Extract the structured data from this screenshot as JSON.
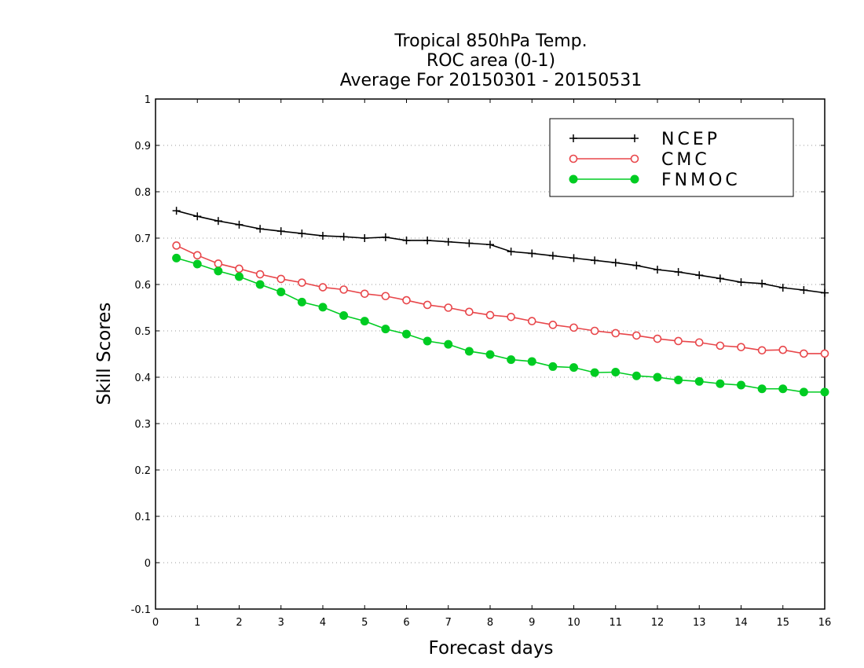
{
  "chart_data": {
    "type": "line",
    "title": [
      "Tropical 850hPa Temp.",
      "ROC area (0-1)",
      "Average For 20150301 - 20150531"
    ],
    "xlabel": "Forecast days",
    "ylabel": "Skill Scores",
    "xlim": [
      0,
      16
    ],
    "ylim": [
      -0.1,
      1
    ],
    "xticks": [
      "0",
      "1",
      "2",
      "3",
      "4",
      "5",
      "6",
      "7",
      "8",
      "9",
      "10",
      "11",
      "12",
      "13",
      "14",
      "15",
      "16"
    ],
    "yticks": [
      "-0.1",
      "0",
      "0.1",
      "0.2",
      "0.3",
      "0.4",
      "0.5",
      "0.6",
      "0.7",
      "0.8",
      "0.9",
      "1"
    ],
    "grid": "horizontal-dotted",
    "legend_position": "top-right",
    "x": [
      0.5,
      1,
      1.5,
      2,
      2.5,
      3,
      3.5,
      4,
      4.5,
      5,
      5.5,
      6,
      6.5,
      7,
      7.5,
      8,
      8.5,
      9,
      9.5,
      10,
      10.5,
      11,
      11.5,
      12,
      12.5,
      13,
      13.5,
      14,
      14.5,
      15,
      15.5,
      16
    ],
    "series": [
      {
        "name": "NCEP",
        "color": "#000000",
        "marker": "plus",
        "values": [
          0.759,
          0.747,
          0.737,
          0.729,
          0.72,
          0.715,
          0.71,
          0.705,
          0.703,
          0.7,
          0.702,
          0.695,
          0.695,
          0.692,
          0.689,
          0.686,
          0.671,
          0.667,
          0.662,
          0.657,
          0.652,
          0.647,
          0.641,
          0.632,
          0.627,
          0.62,
          0.613,
          0.605,
          0.602,
          0.593,
          0.588,
          0.582
        ]
      },
      {
        "name": "CMC",
        "color": "#e8464a",
        "marker": "open-circle",
        "values": [
          0.684,
          0.663,
          0.645,
          0.634,
          0.622,
          0.612,
          0.604,
          0.594,
          0.589,
          0.58,
          0.575,
          0.566,
          0.556,
          0.55,
          0.541,
          0.534,
          0.53,
          0.521,
          0.513,
          0.507,
          0.5,
          0.495,
          0.49,
          0.483,
          0.478,
          0.475,
          0.468,
          0.465,
          0.458,
          0.459,
          0.451,
          0.451
        ]
      },
      {
        "name": "FNMOC",
        "color": "#00cc22",
        "marker": "filled-circle",
        "values": [
          0.657,
          0.644,
          0.629,
          0.617,
          0.6,
          0.584,
          0.562,
          0.551,
          0.533,
          0.521,
          0.504,
          0.493,
          0.478,
          0.471,
          0.456,
          0.449,
          0.438,
          0.434,
          0.423,
          0.421,
          0.41,
          0.411,
          0.403,
          0.4,
          0.394,
          0.391,
          0.386,
          0.383,
          0.375,
          0.375,
          0.368,
          0.368
        ]
      }
    ]
  }
}
